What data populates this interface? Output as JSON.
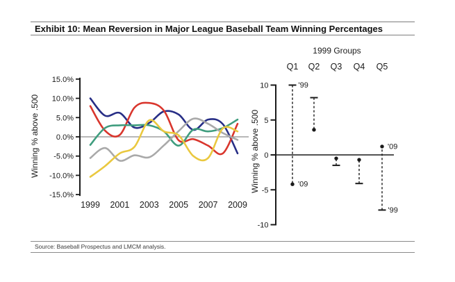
{
  "header": {
    "title": "Exhibit 10: Mean Reversion in Major League Baseball Team Winning Percentages"
  },
  "footer": {
    "source": "Source: Baseball Prospectus and LMCM analysis."
  },
  "chart_data": [
    {
      "id": "quintile-winning-pct-lines",
      "type": "line",
      "title": "",
      "xlabel": "",
      "ylabel": "Winning % above .500",
      "x": [
        1999,
        2000,
        2001,
        2002,
        2003,
        2004,
        2005,
        2006,
        2007,
        2008,
        2009
      ],
      "xticks": [
        1999,
        2001,
        2003,
        2005,
        2007,
        2009
      ],
      "yticks": [
        15,
        10,
        5,
        0,
        -5,
        -10,
        -15
      ],
      "ytick_labels": [
        "15.0%",
        "10.0%",
        "5.0%",
        "0.0%",
        "-5.0%",
        "-10.0%",
        "-15.0%"
      ],
      "ylim": [
        -15,
        15
      ],
      "grid": "zero-line-only",
      "zero_line_color": "#8c8c8c",
      "series": [
        {
          "name": "navy-line",
          "color": "#272e86",
          "values": [
            10.0,
            5.5,
            6.2,
            2.4,
            3.6,
            6.6,
            5.8,
            1.8,
            4.5,
            3.3,
            -4.3
          ]
        },
        {
          "name": "red-line",
          "color": "#d9362d",
          "values": [
            8.0,
            1.6,
            0.5,
            7.6,
            8.8,
            6.8,
            -0.9,
            -0.6,
            -2.3,
            -4.3,
            3.4
          ]
        },
        {
          "name": "green-line",
          "color": "#3f9d7e",
          "values": [
            -2.1,
            2.3,
            3.0,
            3.0,
            3.0,
            1.4,
            -2.3,
            1.9,
            1.4,
            2.3,
            4.5
          ]
        },
        {
          "name": "gray-line",
          "color": "#a9a9a9",
          "values": [
            -5.5,
            -2.9,
            -6.2,
            -4.8,
            -5.3,
            -2.2,
            1.5,
            4.7,
            3.4,
            1.0,
            -0.8
          ]
        },
        {
          "name": "yellow-line",
          "color": "#eac83f",
          "values": [
            -10.4,
            -7.6,
            -4.3,
            -2.6,
            4.3,
            1.4,
            0.4,
            -5.0,
            -5.5,
            2.2,
            1.4
          ]
        }
      ]
    },
    {
      "id": "1999-groups-range",
      "type": "range-dot",
      "title": "1999 Groups",
      "ylabel": "Winning % above .500",
      "yticks": [
        10,
        5,
        0,
        -5,
        -10
      ],
      "ylim": [
        -10,
        10
      ],
      "marker_color": "#1a1a1a",
      "groups": [
        {
          "label": "Q1",
          "y1999": 10.0,
          "y2009": -4.2,
          "label_1999": "'99",
          "label_2009": "'09"
        },
        {
          "label": "Q2",
          "y1999": 8.2,
          "y2009": 3.6,
          "label_1999": "",
          "label_2009": ""
        },
        {
          "label": "Q3",
          "y1999": -1.5,
          "y2009": -0.5,
          "label_1999": "",
          "label_2009": ""
        },
        {
          "label": "Q4",
          "y1999": -4.1,
          "y2009": -0.7,
          "label_1999": "",
          "label_2009": ""
        },
        {
          "label": "Q5",
          "y1999": -7.9,
          "y2009": 1.2,
          "label_1999": "'99",
          "label_2009": "'09"
        }
      ]
    }
  ]
}
